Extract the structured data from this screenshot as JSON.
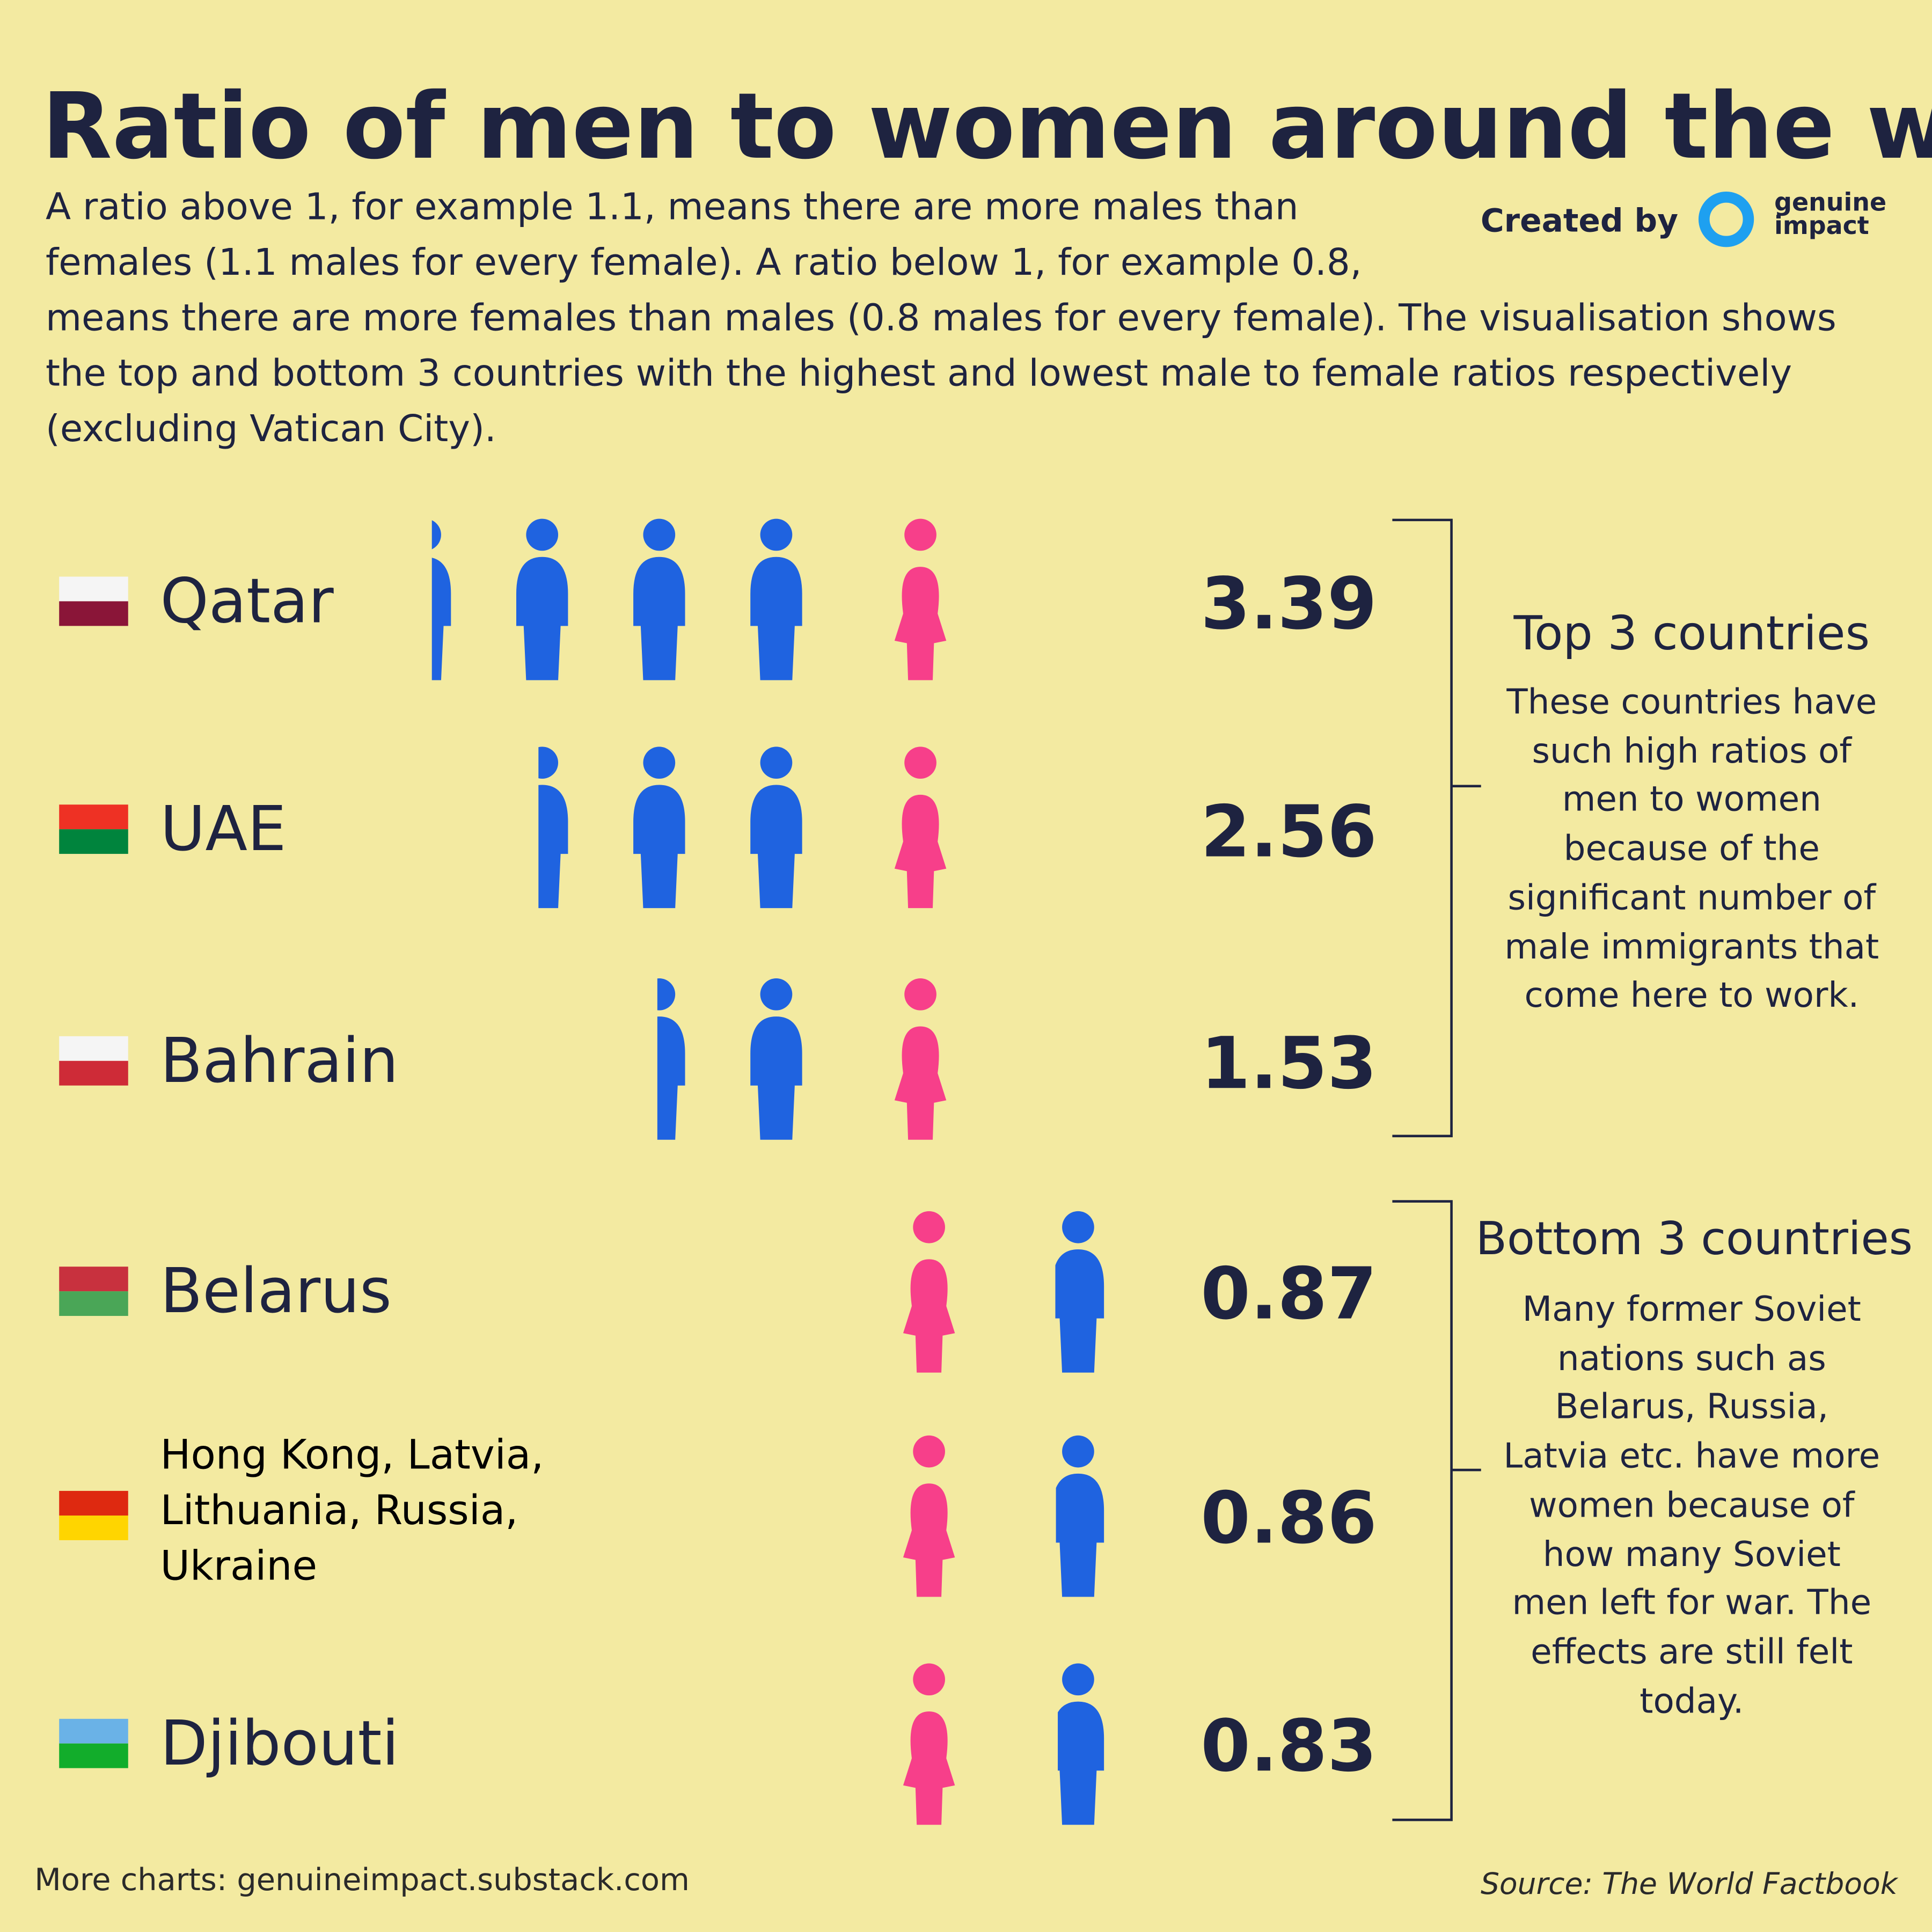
{
  "chart_data": {
    "type": "pictogram",
    "title": "Ratio of men to women around the world",
    "subtitle": "A ratio above 1, for example 1.1, means there are more males than females (1.1 males for every female). A ratio below 1, for example 0.8, means there are more females than males (0.8 males for every female). The visualisation shows the top and bottom 3 countries with the highest and lowest male to female ratios respectively (excluding Vatican City).",
    "credit": "Created by",
    "brand": "genuine impact",
    "categories": [
      "Qatar",
      "UAE",
      "Bahrain",
      "Belarus",
      "Hong Kong, Latvia, Lithuania, Russia, Ukraine",
      "Djibouti"
    ],
    "values": [
      3.39,
      2.56,
      1.53,
      0.87,
      0.86,
      0.83
    ],
    "male_color": "#1f63e0",
    "female_color": "#f73f8a",
    "groups": [
      {
        "label": "Top 3 countries",
        "text": "These countries have such high ratios of men to women because of the significant number of male immigrants that come here to work."
      },
      {
        "label": "Bottom 3 countries",
        "text": "Many former Soviet nations such as Belarus, Russia, Latvia etc. have more women because of how many Soviet men left for war. The effects are still felt today."
      }
    ],
    "footer": "More charts: genuineimpact.substack.com",
    "source": "Source: The World Factbook"
  }
}
